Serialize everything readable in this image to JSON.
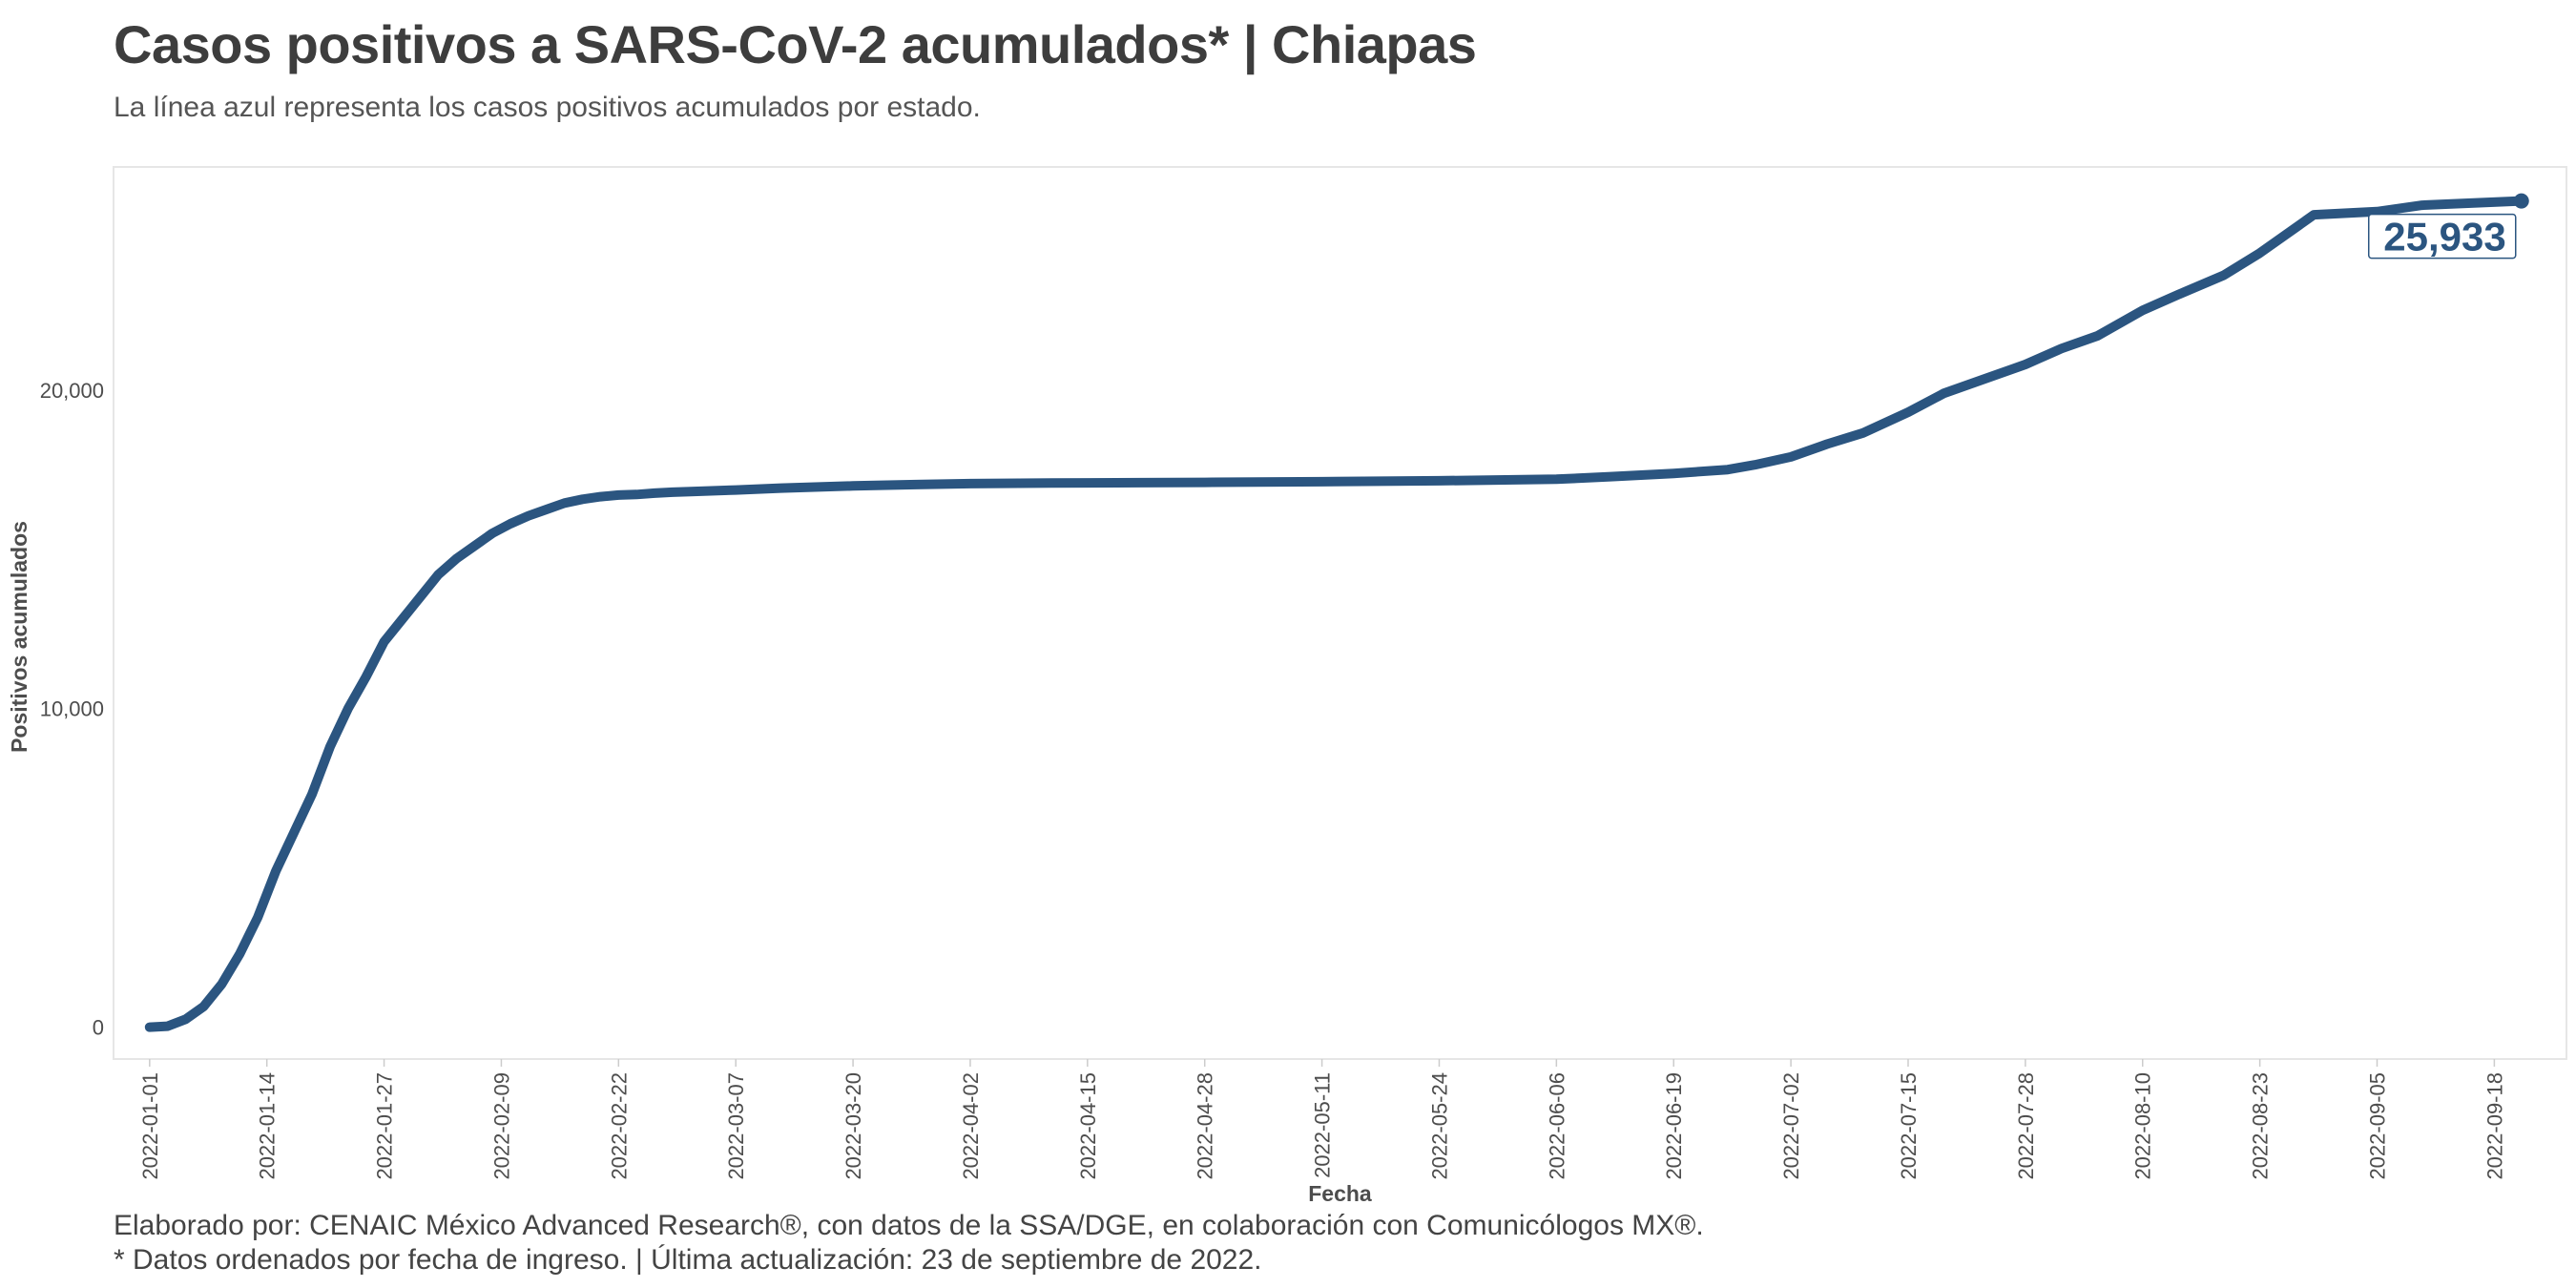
{
  "title": "Casos positivos a SARS-CoV-2 acumulados* | Chiapas",
  "subtitle": "La línea azul representa los casos positivos acumulados por estado.",
  "caption_line1": "Elaborado por: CENAIC México Advanced Research®, con datos de la SSA/DGE, en colaboración con Comunicólogos MX®.",
  "caption_line2": "* Datos ordenados por fecha de ingreso. | Última actualización: 23 de septiembre de 2022.",
  "colors": {
    "line": "#2b5580",
    "panel_border": "#e6e6e6",
    "background": "#ffffff"
  },
  "chart_data": {
    "type": "line",
    "title": "Casos positivos a SARS-CoV-2 acumulados* | Chiapas",
    "xlabel": "Fecha",
    "ylabel": "Positivos acumulados",
    "ylim": [
      -1000,
      27000
    ],
    "yticks": [
      0,
      10000,
      20000
    ],
    "ytick_labels": [
      "0",
      "10,000",
      "20,000"
    ],
    "xlim_day": [
      -4,
      268
    ],
    "xticks_day": [
      0,
      13,
      26,
      39,
      52,
      65,
      78,
      91,
      104,
      117,
      130,
      143,
      156,
      169,
      182,
      195,
      208,
      221,
      234,
      247,
      260
    ],
    "xtick_labels": [
      "2022-01-01",
      "2022-01-14",
      "2022-01-27",
      "2022-02-09",
      "2022-02-22",
      "2022-03-07",
      "2022-03-20",
      "2022-04-02",
      "2022-04-15",
      "2022-04-28",
      "2022-05-11",
      "2022-05-24",
      "2022-06-06",
      "2022-06-19",
      "2022-07-02",
      "2022-07-15",
      "2022-07-28",
      "2022-08-10",
      "2022-08-23",
      "2022-09-05",
      "2022-09-18"
    ],
    "series": [
      {
        "name": "Chiapas",
        "x_day": [
          0,
          2,
          4,
          6,
          8,
          10,
          12,
          14,
          16,
          18,
          20,
          22,
          24,
          26,
          28,
          30,
          32,
          34,
          36,
          38,
          40,
          42,
          44,
          46,
          48,
          50,
          52,
          54,
          56,
          58,
          60,
          65,
          70,
          78,
          85,
          91,
          100,
          110,
          117,
          130,
          143,
          156,
          162,
          169,
          175,
          178,
          182,
          186,
          190,
          195,
          199,
          204,
          208,
          212,
          216,
          221,
          225,
          230,
          234,
          240,
          247,
          252,
          263
        ],
        "values": [
          0,
          30,
          250,
          650,
          1350,
          2300,
          3450,
          4900,
          6100,
          7300,
          8800,
          10000,
          11000,
          12100,
          12800,
          13500,
          14200,
          14700,
          15100,
          15500,
          15800,
          16050,
          16250,
          16450,
          16570,
          16650,
          16700,
          16720,
          16760,
          16790,
          16810,
          16860,
          16920,
          16990,
          17030,
          17060,
          17080,
          17090,
          17100,
          17120,
          17150,
          17200,
          17280,
          17380,
          17500,
          17650,
          17900,
          18300,
          18650,
          19300,
          19900,
          20400,
          20800,
          21300,
          21700,
          22500,
          23000,
          23600,
          24300,
          25500,
          25600,
          25800,
          25933
        ]
      }
    ],
    "end_label": "25,933",
    "end_value": 25933
  }
}
